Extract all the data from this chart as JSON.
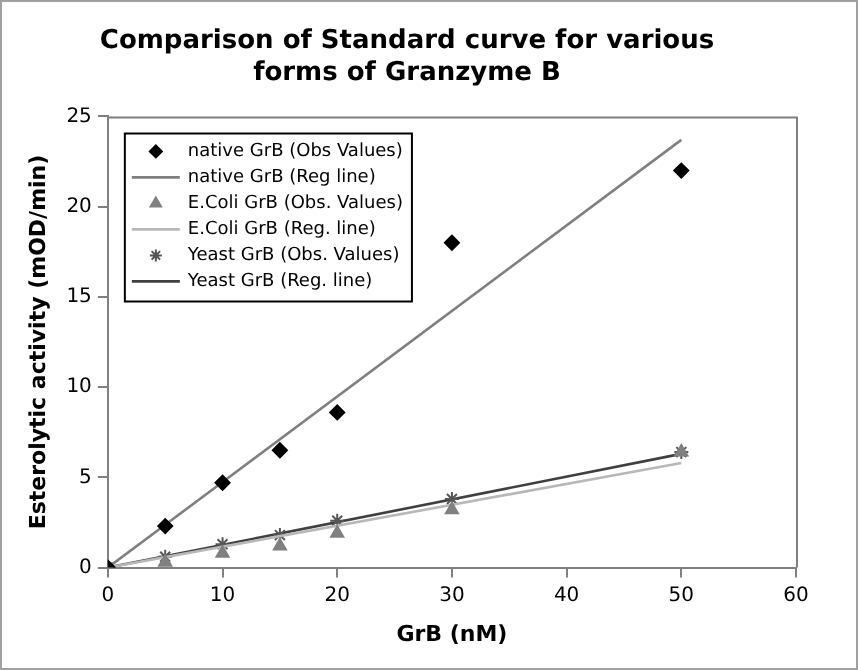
{
  "chart_data": {
    "type": "scatter",
    "title": "Comparison of Standard curve for various forms of Granzyme B",
    "xlabel": "GrB (nM)",
    "ylabel": "Esterolytic activity (mOD/min)",
    "xlim": [
      0,
      60
    ],
    "xticks": [
      0,
      10,
      20,
      30,
      40,
      50,
      60
    ],
    "ylim": [
      0,
      25
    ],
    "yticks": [
      0,
      5,
      10,
      15,
      20,
      25
    ],
    "grid": false,
    "legend": "top left",
    "series": [
      {
        "name": "native GrB (Obs Values)",
        "type": "scatter",
        "marker": "diamond",
        "color": "#000000",
        "x": [
          0,
          5,
          10,
          15,
          20,
          30,
          50
        ],
        "values": [
          0,
          2.3,
          4.7,
          6.5,
          8.6,
          18,
          22
        ]
      },
      {
        "name": "native GrB (Reg line)",
        "type": "line",
        "marker": "none",
        "color": "#808080",
        "x": [
          0,
          50
        ],
        "values": [
          0,
          23.7
        ]
      },
      {
        "name": "E.Coli GrB (Obs. Values)",
        "type": "scatter",
        "marker": "triangle",
        "color": "#808080",
        "x": [
          5,
          10,
          15,
          20,
          30,
          50
        ],
        "values": [
          0.3,
          0.8,
          1.2,
          1.9,
          3.2,
          6.4
        ]
      },
      {
        "name": "E.Coli GrB (Reg. line)",
        "type": "line",
        "marker": "none",
        "color": "#b8b8b8",
        "x": [
          0,
          50
        ],
        "values": [
          0,
          5.8
        ]
      },
      {
        "name": "Yeast GrB (Obs. Values)",
        "type": "scatter",
        "marker": "cross",
        "color": "#555555",
        "x": [
          0,
          5,
          10,
          15,
          20,
          30,
          50
        ],
        "values": [
          0,
          0.6,
          1.3,
          1.8,
          2.6,
          3.8,
          6.4
        ]
      },
      {
        "name": "Yeast GrB (Reg. line)",
        "type": "line",
        "marker": "none",
        "color": "#404040",
        "x": [
          0,
          50
        ],
        "values": [
          0,
          6.3
        ]
      }
    ]
  }
}
